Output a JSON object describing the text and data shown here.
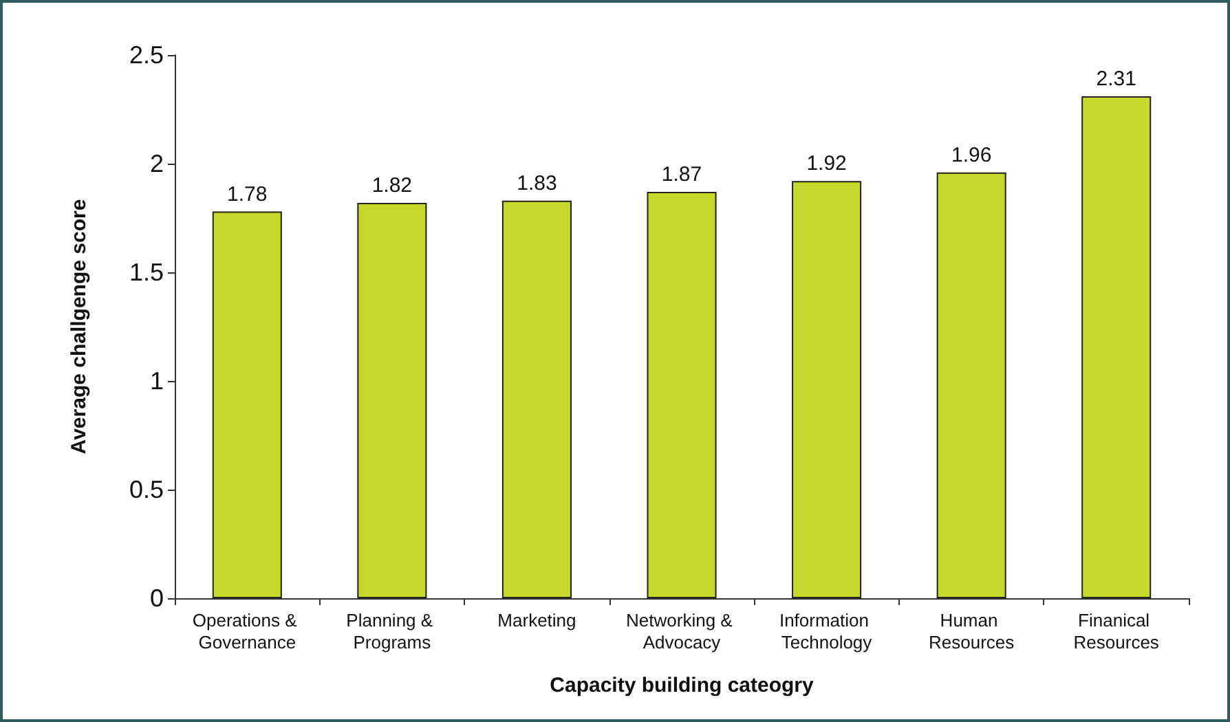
{
  "chart_data": {
    "type": "bar",
    "xlabel": "Capacity building cateogry",
    "ylabel": "Average challgenge score",
    "categories": [
      "Operations & Governance",
      "Planning & Programs",
      "Marketing",
      "Networking & Advocacy",
      "Information Technology",
      "Human Resources",
      "Finanical Resources"
    ],
    "values": [
      1.78,
      1.82,
      1.83,
      1.87,
      1.92,
      1.96,
      2.31
    ],
    "color": "#c6d92b",
    "ylim": [
      0,
      2.5
    ],
    "yticks": [
      0,
      0.5,
      1,
      1.5,
      2,
      2.5
    ],
    "grid": false,
    "data_labels": true
  }
}
